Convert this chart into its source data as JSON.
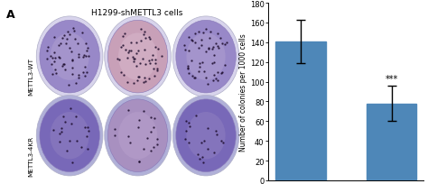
{
  "categories": [
    "METTL3-WT",
    "METTL3-4KR"
  ],
  "values": [
    141,
    78
  ],
  "errors": [
    22,
    18
  ],
  "bar_color": "#4e87b8",
  "ylabel": "Number of colonies per 1000 cells",
  "ylim": [
    0,
    180
  ],
  "yticks": [
    0,
    20,
    40,
    60,
    80,
    100,
    120,
    140,
    160,
    180
  ],
  "title_panel": "H1299-shMETTL3 cells",
  "panel_label": "A",
  "significance": "***",
  "figure_bg": "#ffffff",
  "panel_bg": "#e8e0d0",
  "row_labels": [
    "METTL3-WT",
    "METTL3-4KR"
  ],
  "plate_rim_color": "#7070c0",
  "plate_outer_color": "#c0c0e0",
  "plate_row1_fill": [
    "#9888c8",
    "#c8a0b8",
    "#9888c8"
  ],
  "plate_row2_fill": [
    "#7868b8",
    "#a890c0",
    "#7868b8"
  ],
  "dot_color": "#1a0a2a",
  "n_dots_row1": 55,
  "n_dots_row2": 20
}
